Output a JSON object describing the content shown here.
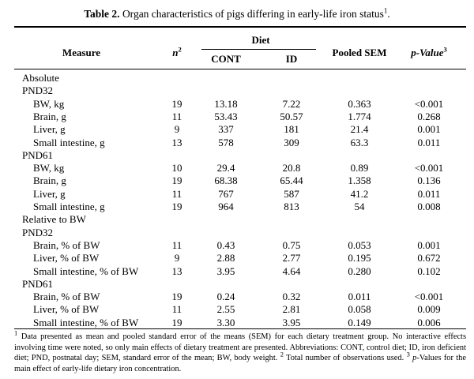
{
  "caption": {
    "label": "Table 2.",
    "text": "Organ characteristics of pigs differing in early-life iron status",
    "sup": "1",
    "end": "."
  },
  "headers": {
    "measure": "Measure",
    "n": "n",
    "n_sup": "2",
    "diet": "Diet",
    "cont": "CONT",
    "id": "ID",
    "sem": "Pooled SEM",
    "p": "p-Value",
    "p_sup": "3"
  },
  "rows": [
    {
      "type": "section",
      "label": "Absolute"
    },
    {
      "type": "group",
      "label": "PND32"
    },
    {
      "type": "data",
      "label": "BW, kg",
      "n": "19",
      "cont": "13.18",
      "id": "7.22",
      "sem": "0.363",
      "p": "<0.001"
    },
    {
      "type": "data",
      "label": "Brain, g",
      "n": "11",
      "cont": "53.43",
      "id": "50.57",
      "sem": "1.774",
      "p": "0.268"
    },
    {
      "type": "data",
      "label": "Liver, g",
      "n": "9",
      "cont": "337",
      "id": "181",
      "sem": "21.4",
      "p": "0.001"
    },
    {
      "type": "data",
      "label": "Small intestine, g",
      "n": "13",
      "cont": "578",
      "id": "309",
      "sem": "63.3",
      "p": "0.011"
    },
    {
      "type": "group",
      "label": "PND61"
    },
    {
      "type": "data",
      "label": "BW, kg",
      "n": "10",
      "cont": "29.4",
      "id": "20.8",
      "sem": "0.89",
      "p": "<0.001"
    },
    {
      "type": "data",
      "label": "Brain, g",
      "n": "19",
      "cont": "68.38",
      "id": "65.44",
      "sem": "1.358",
      "p": "0.136"
    },
    {
      "type": "data",
      "label": "Liver, g",
      "n": "11",
      "cont": "767",
      "id": "587",
      "sem": "41.2",
      "p": "0.011"
    },
    {
      "type": "data",
      "label": "Small intestine, g",
      "n": "19",
      "cont": "964",
      "id": "813",
      "sem": "54",
      "p": "0.008"
    },
    {
      "type": "section",
      "label": "Relative to BW"
    },
    {
      "type": "group",
      "label": "PND32"
    },
    {
      "type": "data",
      "label": "Brain, % of BW",
      "n": "11",
      "cont": "0.43",
      "id": "0.75",
      "sem": "0.053",
      "p": "0.001"
    },
    {
      "type": "data",
      "label": "Liver, % of BW",
      "n": "9",
      "cont": "2.88",
      "id": "2.77",
      "sem": "0.195",
      "p": "0.672"
    },
    {
      "type": "data",
      "label": "Small intestine, % of BW",
      "n": "13",
      "cont": "3.95",
      "id": "4.64",
      "sem": "0.280",
      "p": "0.102"
    },
    {
      "type": "group",
      "label": "PND61"
    },
    {
      "type": "data",
      "label": "Brain, % of BW",
      "n": "19",
      "cont": "0.24",
      "id": "0.32",
      "sem": "0.011",
      "p": "<0.001"
    },
    {
      "type": "data",
      "label": "Liver, % of BW",
      "n": "11",
      "cont": "2.55",
      "id": "2.81",
      "sem": "0.058",
      "p": "0.009"
    },
    {
      "type": "data",
      "label": "Small intestine, % of BW",
      "n": "19",
      "cont": "3.30",
      "id": "3.95",
      "sem": "0.149",
      "p": "0.006"
    }
  ],
  "footnote": {
    "sup1": "1",
    "text1": "Data presented as mean and pooled standard error of the means (SEM) for each dietary treatment group. No interactive effects involving time were noted, so only main effects of dietary treatment are presented. Abbreviations: CONT, control diet; ID, iron deficient diet; PND, postnatal day; SEM, standard error of the mean; BW, body weight.",
    "sup2": "2",
    "text2": "Total number of observations used.",
    "sup3": "3",
    "text3": "p-Values for the main effect of early-life dietary iron concentration."
  }
}
